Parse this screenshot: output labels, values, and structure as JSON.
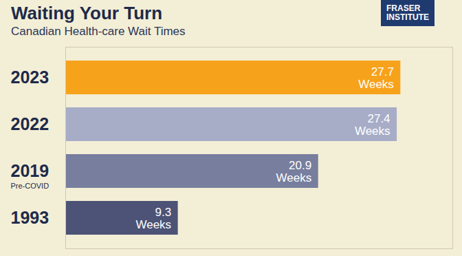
{
  "chart_data": {
    "type": "bar",
    "orientation": "horizontal",
    "title": "Waiting Your Turn",
    "subtitle": "Canadian Health-care Wait Times",
    "categories": [
      "2023",
      "2022",
      "2019",
      "1993"
    ],
    "values": [
      27.7,
      27.4,
      20.9,
      9.3
    ],
    "value_labels": [
      "27.7 Weeks",
      "27.4 Weeks",
      "20.9 Weeks",
      "9.3 Weeks"
    ],
    "colors": [
      "#f7a21b",
      "#a7adc7",
      "#777e9e",
      "#4c5376"
    ],
    "data_labels": true,
    "tick_labels": "y",
    "xlim": [
      0,
      32
    ],
    "xticks": [],
    "annotations": [
      {
        "text": "Pre-COVID",
        "category": "2019"
      },
      {
        "text": "FRASER INSTITUTE"
      }
    ]
  }
}
